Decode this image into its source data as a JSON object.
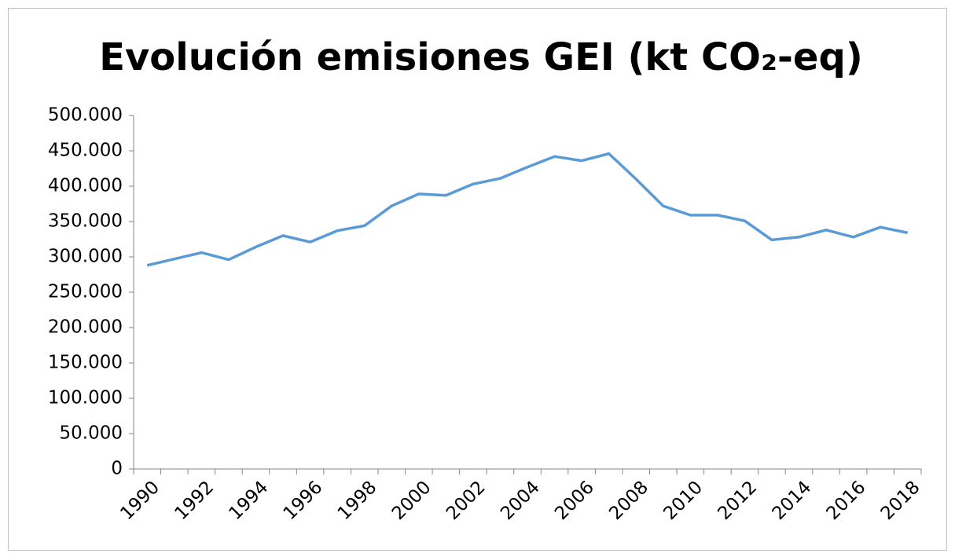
{
  "chart_data": {
    "type": "line",
    "title": "Evolución emisiones GEI (kt CO₂-eq)",
    "categories": [
      "1990",
      null,
      "1992",
      null,
      "1994",
      null,
      "1996",
      null,
      "1998",
      null,
      "2000",
      null,
      "2002",
      null,
      "2004",
      null,
      "2006",
      null,
      "2008",
      null,
      "2010",
      null,
      "2012",
      null,
      "2014",
      null,
      "2016",
      null,
      "2018"
    ],
    "series": [
      {
        "name": "Emisiones GEI",
        "color": "#5b9bd5",
        "values": [
          288000,
          297000,
          306000,
          296000,
          314000,
          330000,
          321000,
          337000,
          344000,
          372000,
          389000,
          387000,
          403000,
          411000,
          427000,
          442000,
          436000,
          446000,
          410000,
          372000,
          359000,
          359000,
          351000,
          324000,
          328000,
          338000,
          328000,
          342000,
          334000
        ]
      }
    ],
    "ylim": [
      0,
      500000
    ],
    "yticks": [
      0,
      {
        "value": 50000,
        "label": "50.000"
      },
      {
        "value": 100000,
        "label": "100.000"
      },
      {
        "value": 150000,
        "label": "150.000"
      },
      {
        "value": 200000,
        "label": "200.000"
      },
      {
        "value": 250000,
        "label": "250.000"
      },
      {
        "value": 300000,
        "label": "300.000"
      },
      {
        "value": 350000,
        "label": "350.000"
      },
      {
        "value": 400000,
        "label": "400.000"
      },
      {
        "value": 450000,
        "label": "450.000"
      },
      {
        "value": 500000,
        "label": "500.000"
      }
    ],
    "grid": false
  }
}
